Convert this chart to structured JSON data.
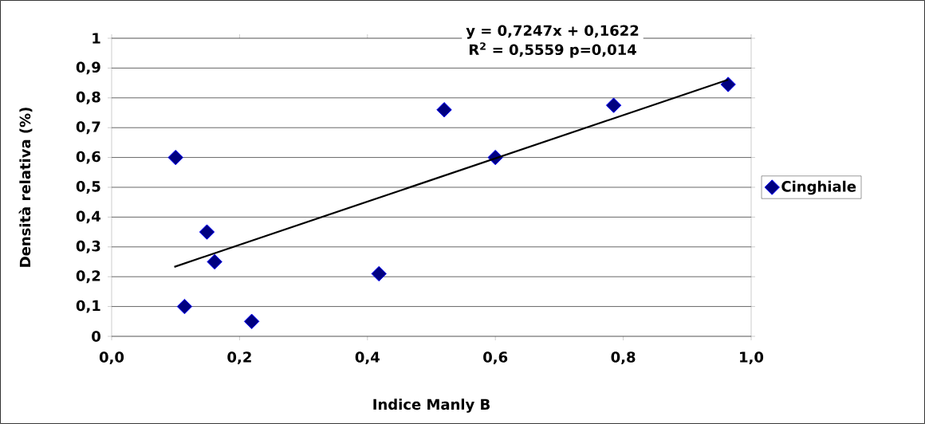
{
  "chart_data": {
    "type": "scatter",
    "xlabel": "Indice Manly B",
    "ylabel": "Densità relativa (%)",
    "annotations": [
      "y = 0,7247x + 0,1622",
      "R$^{2}$ = 0,5559 p=0,014"
    ],
    "series": [
      {
        "name": "Cinghiale",
        "color": "#000080",
        "x": [
          0.1,
          0.114,
          0.149,
          0.161,
          0.219,
          0.418,
          0.52,
          0.6,
          0.785,
          0.964
        ],
        "values": [
          0.6,
          0.1,
          0.35,
          0.25,
          0.05,
          0.21,
          0.76,
          0.6,
          0.775,
          0.845
        ]
      },
      {
        "type": "line",
        "marker": "none",
        "color": "#000000",
        "x": [
          0.098,
          0.964
        ],
        "values": [
          0.233,
          0.861
        ]
      }
    ],
    "xlim": [
      0,
      1
    ],
    "ylim": [
      0,
      1
    ],
    "xticks": [
      {
        "value": 0,
        "label": "0,0"
      },
      {
        "value": 0.2,
        "label": "0,2"
      },
      {
        "value": 0.4,
        "label": "0,4"
      },
      {
        "value": 0.6,
        "label": "0,6"
      },
      {
        "value": 0.8,
        "label": "0,8"
      },
      {
        "value": 1,
        "label": "1,0"
      }
    ],
    "yticks": [
      0,
      {
        "value": 0.1,
        "label": "0,1"
      },
      {
        "value": 0.2,
        "label": "0,2"
      },
      {
        "value": 0.3,
        "label": "0,3"
      },
      {
        "value": 0.4,
        "label": "0,4"
      },
      {
        "value": 0.5,
        "label": "0,5"
      },
      {
        "value": 0.6,
        "label": "0,6"
      },
      {
        "value": 0.7,
        "label": "0,7"
      },
      {
        "value": 0.8,
        "label": "0,8"
      },
      {
        "value": 0.9,
        "label": "0,9"
      },
      1
    ],
    "grid": "y",
    "legend": "right",
    "marker": "diamond"
  }
}
